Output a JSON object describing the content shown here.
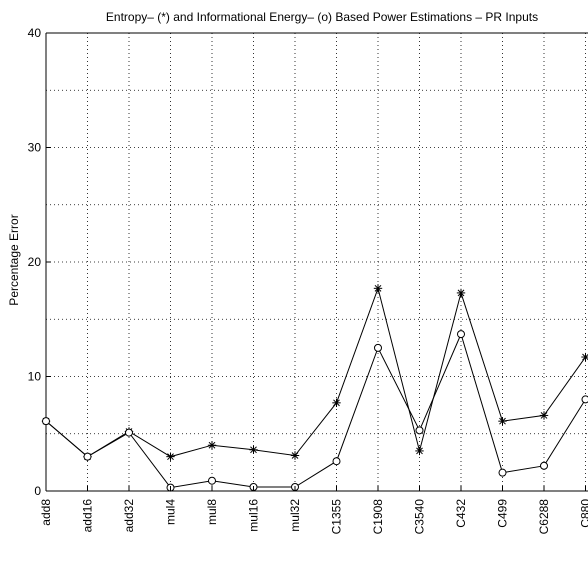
{
  "chart_data": {
    "type": "line",
    "title": "Entropy– (*) and Informational Energy– (o) Based Power Estimations – PR Inputs",
    "xlabel": "",
    "ylabel": "Percentage Error",
    "ylim": [
      0,
      40
    ],
    "yticks": [
      0,
      10,
      20,
      30,
      40
    ],
    "grid": true,
    "categories": [
      "add8",
      "add16",
      "add32",
      "mul4",
      "mul8",
      "mul16",
      "mul32",
      "C1355",
      "C1908",
      "C3540",
      "C432",
      "C499",
      "C6288",
      "C880"
    ],
    "series": [
      {
        "marker": "asterisk",
        "values": [
          6.1,
          3.0,
          5.2,
          3.0,
          4.0,
          3.6,
          3.1,
          7.7,
          17.7,
          3.5,
          17.3,
          6.1,
          6.6,
          11.7
        ]
      },
      {
        "marker": "circle",
        "values": [
          6.1,
          3.0,
          5.1,
          0.3,
          0.9,
          0.35,
          0.35,
          2.6,
          12.5,
          5.3,
          13.7,
          1.6,
          2.2,
          8.0
        ]
      }
    ],
    "colors": {
      "line": "#000000",
      "grid": "#000000",
      "background": "#ffffff"
    }
  }
}
